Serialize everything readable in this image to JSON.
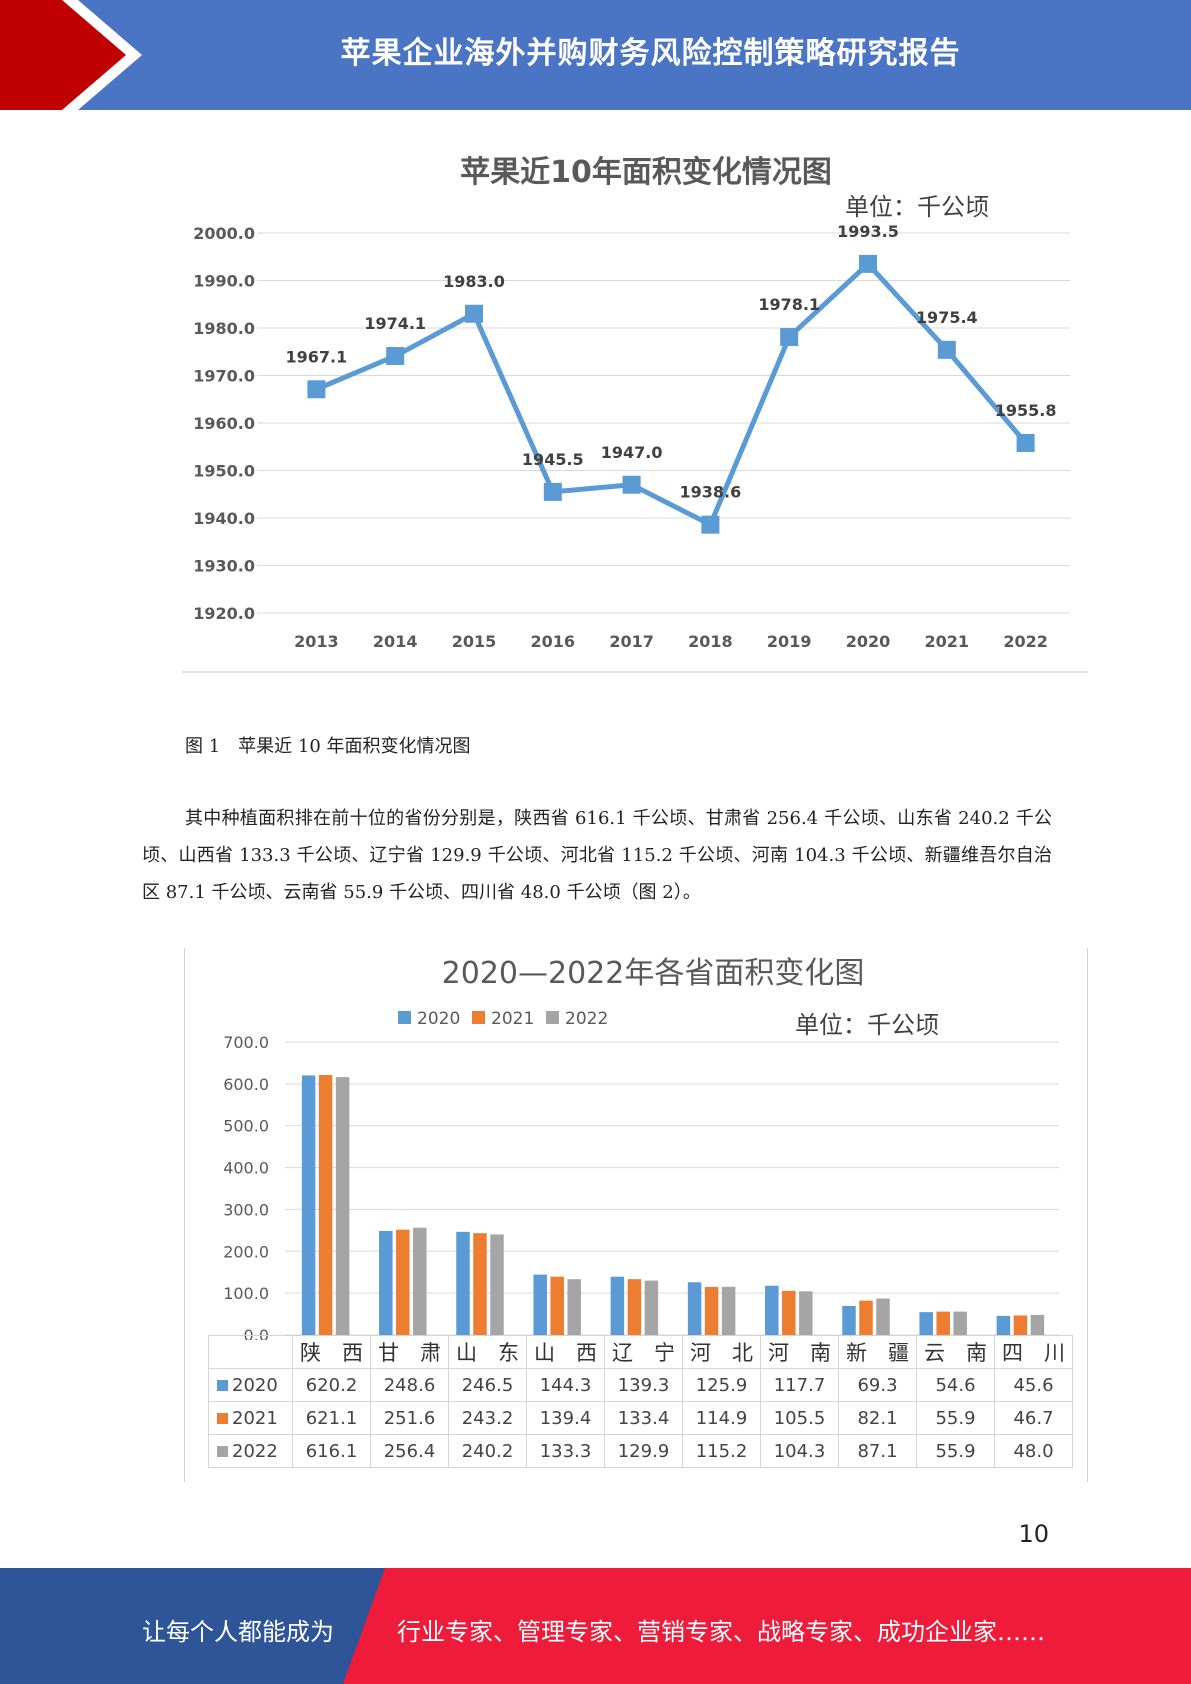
{
  "header": {
    "title": "苹果企业海外并购财务风险控制策略研究报告",
    "bar_color": "#4a74c4",
    "arrow_color": "#c00000"
  },
  "chart_data": [
    {
      "type": "line",
      "title": "苹果近10年面积变化情况图",
      "unit_label": "单位：千公顷",
      "x": [
        "2013",
        "2014",
        "2015",
        "2016",
        "2017",
        "2018",
        "2019",
        "2020",
        "2021",
        "2022"
      ],
      "series": [
        {
          "values": [
            1967.1,
            1974.1,
            1983.0,
            1945.5,
            1947.0,
            1938.6,
            1978.1,
            1993.5,
            1975.4,
            1955.8
          ],
          "color": "#5b9bd5"
        }
      ],
      "data_labels": [
        "1967.1",
        "1974.1",
        "1983.0",
        "1945.5",
        "1947.0",
        "1938.6",
        "1978.1",
        "1993.5",
        "1975.4",
        "1955.8"
      ],
      "y_ticks": [
        "1920.0",
        "1930.0",
        "1940.0",
        "1950.0",
        "1960.0",
        "1970.0",
        "1980.0",
        "1990.0",
        "2000.0"
      ],
      "ylim": [
        1920,
        2000
      ],
      "grid": true
    },
    {
      "type": "bar",
      "title": "2020—2022年各省面积变化图",
      "unit_label": "单位：千公顷",
      "categories": [
        "陕　西",
        "甘　肃",
        "山　东",
        "山　西",
        "辽　宁",
        "河　北",
        "河　南",
        "新　疆",
        "云　南",
        "四　川"
      ],
      "series": [
        {
          "name": "2020",
          "color": "#5b9bd5",
          "values": [
            620.2,
            248.6,
            246.5,
            144.3,
            139.3,
            125.9,
            117.7,
            69.3,
            54.6,
            45.6
          ]
        },
        {
          "name": "2021",
          "color": "#ed7d31",
          "values": [
            621.1,
            251.6,
            243.2,
            139.4,
            133.4,
            114.9,
            105.5,
            82.1,
            55.9,
            46.7
          ]
        },
        {
          "name": "2022",
          "color": "#a5a5a5",
          "values": [
            616.1,
            256.4,
            240.2,
            133.3,
            129.9,
            115.2,
            104.3,
            87.1,
            55.9,
            48.0
          ]
        }
      ],
      "table_values": [
        [
          "620.2",
          "248.6",
          "246.5",
          "144.3",
          "139.3",
          "125.9",
          "117.7",
          "69.3",
          "54.6",
          "45.6"
        ],
        [
          "621.1",
          "251.6",
          "243.2",
          "139.4",
          "133.4",
          "114.9",
          "105.5",
          "82.1",
          "55.9",
          "46.7"
        ],
        [
          "616.1",
          "256.4",
          "240.2",
          "133.3",
          "129.9",
          "115.2",
          "104.3",
          "87.1",
          "55.9",
          "48.0"
        ]
      ],
      "y_ticks": [
        "0.0",
        "100.0",
        "200.0",
        "300.0",
        "400.0",
        "500.0",
        "600.0",
        "700.0"
      ],
      "ylim": [
        0,
        700
      ],
      "legend_position": "top",
      "grid": true
    }
  ],
  "caption": "图 1　苹果近 10 年面积变化情况图",
  "paragraph": "其中种植面积排在前十位的省份分别是，陕西省 616.1 千公顷、甘肃省 256.4 千公顷、山东省 240.2 千公顷、山西省 133.3 千公顷、辽宁省 129.9 千公顷、河北省 115.2 千公顷、河南 104.3 千公顷、新疆维吾尔自治区 87.1 千公顷、云南省 55.9 千公顷、四川省 48.0 千公顷（图 2）。",
  "page_number": "10",
  "footer": {
    "left_text": "让每个人都能成为",
    "right_text": "行业专家、管理专家、营销专家、战略专家、成功企业家……",
    "left_color": "#2e5597",
    "right_color": "#ee1b3a"
  }
}
